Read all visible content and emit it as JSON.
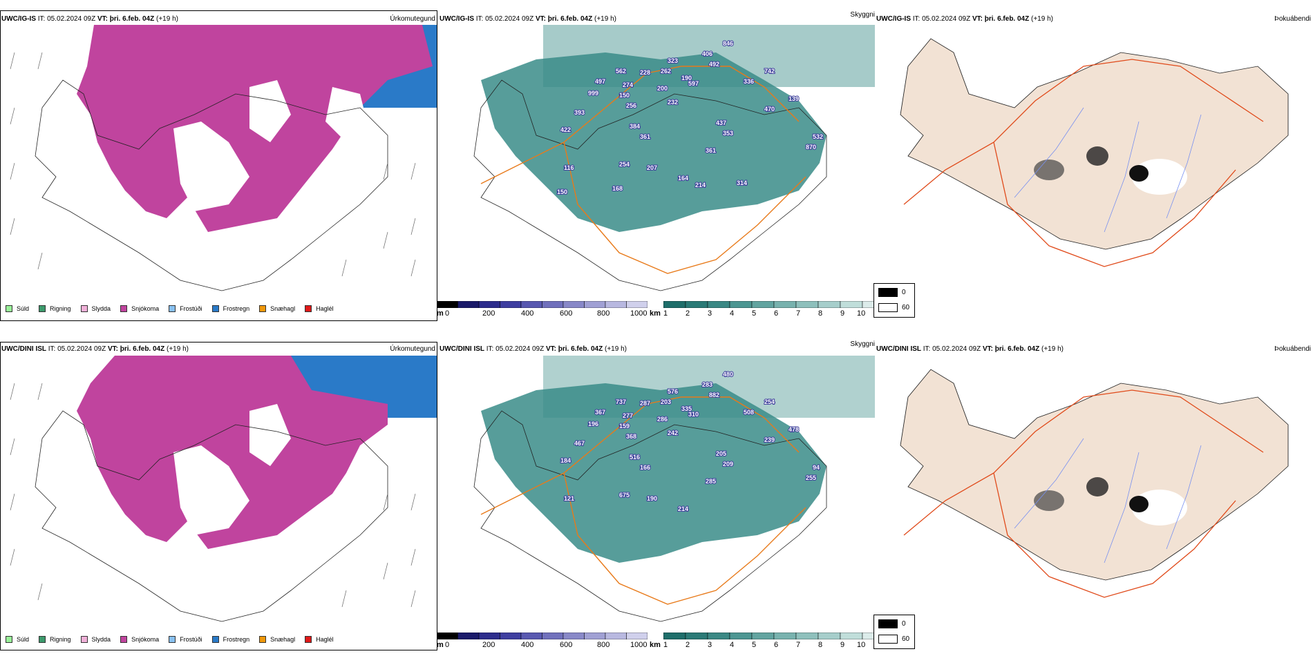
{
  "rows": [
    {
      "model_name": "UWC/IG-IS",
      "it_label": "IT:",
      "it_value": "05.02.2024 09Z",
      "vt_label": "VT:",
      "vt_value": "þri. 6.feb. 04Z",
      "lead": "(+19 h)",
      "titles": {
        "precip": "Úrkomutegund",
        "cloud": "Skyggni",
        "fog": "Þokuábendi"
      },
      "cloud_numbers": [
        "846",
        "492",
        "323",
        "406",
        "742",
        "562",
        "228",
        "262",
        "497",
        "274",
        "190",
        "597",
        "336",
        "999",
        "150",
        "200",
        "232",
        "139",
        "256",
        "470",
        "393",
        "437",
        "384",
        "353",
        "532",
        "422",
        "361",
        "870",
        "361",
        "254",
        "207",
        "116",
        "164",
        "214",
        "314",
        "168",
        "150"
      ],
      "cloud_numbers_color": "#3a3a9a"
    },
    {
      "model_name": "UWC/DINI ISL",
      "it_label": "IT:",
      "it_value": "05.02.2024 09Z",
      "vt_label": "VT:",
      "vt_value": "þri. 6.feb. 04Z",
      "lead": "(+19 h)",
      "titles": {
        "precip": "Úrkomutegund",
        "cloud": "Skyggni",
        "fog": "Þokuábendi"
      },
      "cloud_numbers": [
        "480",
        "882",
        "576",
        "283",
        "254",
        "737",
        "287",
        "203",
        "367",
        "277",
        "335",
        "310",
        "508",
        "196",
        "159",
        "286",
        "242",
        "478",
        "368",
        "239",
        "467",
        "205",
        "516",
        "209",
        "94",
        "184",
        "166",
        "255",
        "285",
        "675",
        "190",
        "121",
        "214"
      ],
      "cloud_numbers_color": "#3a3a9a"
    }
  ],
  "precip_legend": [
    {
      "label": "Súld",
      "color": "#98f098"
    },
    {
      "label": "Rigning",
      "color": "#3c9a6c"
    },
    {
      "label": "Slydda",
      "color": "#f0b0d8"
    },
    {
      "label": "Snjókoma",
      "color": "#c0449e"
    },
    {
      "label": "Frostúði",
      "color": "#88c0f0"
    },
    {
      "label": "Frostregn",
      "color": "#2a7ac8"
    },
    {
      "label": "Snæhagl",
      "color": "#f0980a"
    },
    {
      "label": "Haglél",
      "color": "#e01818"
    }
  ],
  "cloud_base_scale": {
    "unit": "m",
    "ticks": [
      "0",
      "200",
      "400",
      "600",
      "800",
      "1000"
    ],
    "colors": [
      "#000000",
      "#1a1a6a",
      "#2c2c8c",
      "#3e3ea0",
      "#5858b0",
      "#7070bc",
      "#8888c8",
      "#a0a0d4",
      "#b8b8e0",
      "#d0d0ec"
    ]
  },
  "visibility_scale": {
    "unit": "km",
    "ticks": [
      "1",
      "2",
      "3",
      "4",
      "5",
      "6",
      "7",
      "8",
      "9",
      "10"
    ],
    "colors": [
      "#1e6e6a",
      "#2a7a76",
      "#3a8884",
      "#4c9692",
      "#62a4a0",
      "#78b2ae",
      "#8ec0bc",
      "#a6cecb",
      "#c0deda",
      "#dcecea"
    ]
  },
  "fog_scale": {
    "entries": [
      {
        "label": "0",
        "color": "#000000"
      },
      {
        "label": "60",
        "color": "#ffffff"
      }
    ]
  },
  "colors": {
    "snow": "#c0449e",
    "freezing_rain": "#2a7ac8",
    "visibility": "#3a8c88",
    "roads": "#e87a1a",
    "fog_land": "#f2e2d4",
    "fog_roads": "#e04a1a",
    "rivers": "#7890f0"
  }
}
